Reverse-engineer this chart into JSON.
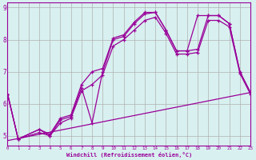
{
  "line1": {
    "x": [
      0,
      1,
      3,
      4,
      5,
      6,
      7,
      8,
      9,
      10,
      11,
      12,
      13,
      14,
      15,
      16,
      17,
      18,
      19,
      20,
      21,
      22,
      23
    ],
    "y": [
      6.3,
      4.9,
      5.2,
      5.0,
      5.5,
      5.6,
      6.5,
      5.4,
      7.0,
      8.0,
      8.1,
      8.5,
      8.8,
      8.85,
      8.3,
      7.65,
      7.65,
      7.7,
      8.75,
      8.75,
      8.5,
      7.0,
      6.35
    ]
  },
  "line2": {
    "x": [
      0,
      1,
      3,
      4,
      5,
      6,
      7,
      8,
      9,
      10,
      11,
      12,
      13,
      14,
      15,
      16,
      17,
      18,
      19,
      20,
      21,
      22,
      23
    ],
    "y": [
      6.3,
      4.9,
      5.2,
      5.05,
      5.55,
      5.65,
      6.6,
      7.0,
      7.1,
      8.05,
      8.15,
      8.55,
      8.85,
      8.85,
      8.3,
      7.65,
      7.65,
      8.75,
      8.75,
      8.75,
      8.5,
      7.0,
      6.35
    ]
  },
  "line3": {
    "x": [
      0,
      1,
      3,
      4,
      5,
      6,
      7,
      8,
      9,
      10,
      11,
      12,
      13,
      14,
      15,
      16,
      17,
      18,
      19,
      20,
      21,
      22,
      23
    ],
    "y": [
      6.3,
      4.9,
      5.1,
      5.0,
      5.4,
      5.55,
      6.4,
      6.6,
      6.9,
      7.8,
      8.0,
      8.3,
      8.6,
      8.7,
      8.2,
      7.55,
      7.55,
      7.6,
      8.6,
      8.6,
      8.4,
      6.95,
      6.3
    ]
  },
  "line4": {
    "x": [
      0,
      23
    ],
    "y": [
      4.85,
      6.35
    ]
  },
  "xlim": [
    0,
    23
  ],
  "ylim": [
    4.7,
    9.15
  ],
  "xticks": [
    0,
    1,
    2,
    3,
    4,
    5,
    6,
    7,
    8,
    9,
    10,
    11,
    12,
    13,
    14,
    15,
    16,
    17,
    18,
    19,
    20,
    21,
    22,
    23
  ],
  "yticks": [
    5,
    6,
    7,
    8,
    9
  ],
  "xlabel": "Windchill (Refroidissement éolien,°C)",
  "line_color": "#990099",
  "bg_color": "#d9f0f0",
  "grid_color": "#b0b0b0"
}
